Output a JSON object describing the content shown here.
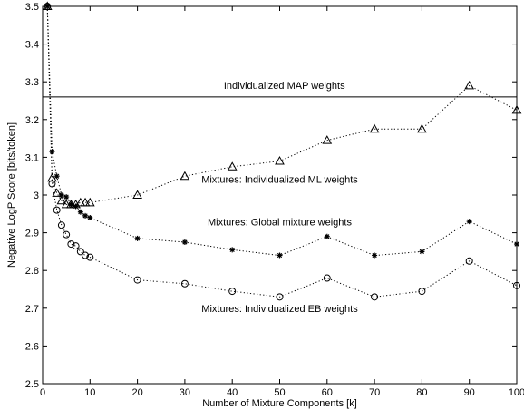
{
  "chart_data": {
    "type": "line",
    "title": "",
    "xlabel": "Number of Mixture Components [k]",
    "ylabel": "Negative LogP Score [bits/token]",
    "xlim": [
      0,
      100
    ],
    "ylim": [
      2.5,
      3.5
    ],
    "xticks": [
      "0",
      "10",
      "20",
      "30",
      "40",
      "50",
      "60",
      "70",
      "80",
      "90",
      "100"
    ],
    "yticks": [
      "2.5",
      "2.6",
      "2.7",
      "2.8",
      "2.9",
      "3",
      "3.1",
      "3.2",
      "3.3",
      "3.4",
      "3.5"
    ],
    "grid": false,
    "legend": "none",
    "reference_line": {
      "label": "Individualized MAP weights",
      "y": 3.26
    },
    "series": [
      {
        "name": "Mixtures: Individualized ML weights",
        "marker": "triangle",
        "x": [
          1,
          2,
          3,
          4,
          5,
          6,
          7,
          8,
          9,
          10,
          20,
          30,
          40,
          50,
          60,
          70,
          80,
          90,
          100
        ],
        "y": [
          3.5,
          3.045,
          3.005,
          2.985,
          2.975,
          2.975,
          2.975,
          2.98,
          2.98,
          2.98,
          3.0,
          3.05,
          3.075,
          3.09,
          3.145,
          3.175,
          3.175,
          3.29,
          3.225
        ]
      },
      {
        "name": "Mixtures: Global mixture weights",
        "marker": "star",
        "x": [
          1,
          2,
          3,
          4,
          5,
          6,
          7,
          8,
          9,
          10,
          20,
          30,
          40,
          50,
          60,
          70,
          80,
          90,
          100
        ],
        "y": [
          3.5,
          3.115,
          3.05,
          3.0,
          2.995,
          2.975,
          2.97,
          2.955,
          2.945,
          2.94,
          2.885,
          2.875,
          2.855,
          2.84,
          2.89,
          2.84,
          2.85,
          2.93,
          2.87
        ]
      },
      {
        "name": "Mixtures: Individualized EB weights",
        "marker": "circle",
        "x": [
          1,
          2,
          3,
          4,
          5,
          6,
          7,
          8,
          9,
          10,
          20,
          30,
          40,
          50,
          60,
          70,
          80,
          90,
          100
        ],
        "y": [
          3.5,
          3.03,
          2.96,
          2.92,
          2.895,
          2.87,
          2.865,
          2.85,
          2.84,
          2.835,
          2.775,
          2.765,
          2.745,
          2.73,
          2.78,
          2.73,
          2.745,
          2.825,
          2.76
        ]
      }
    ]
  }
}
